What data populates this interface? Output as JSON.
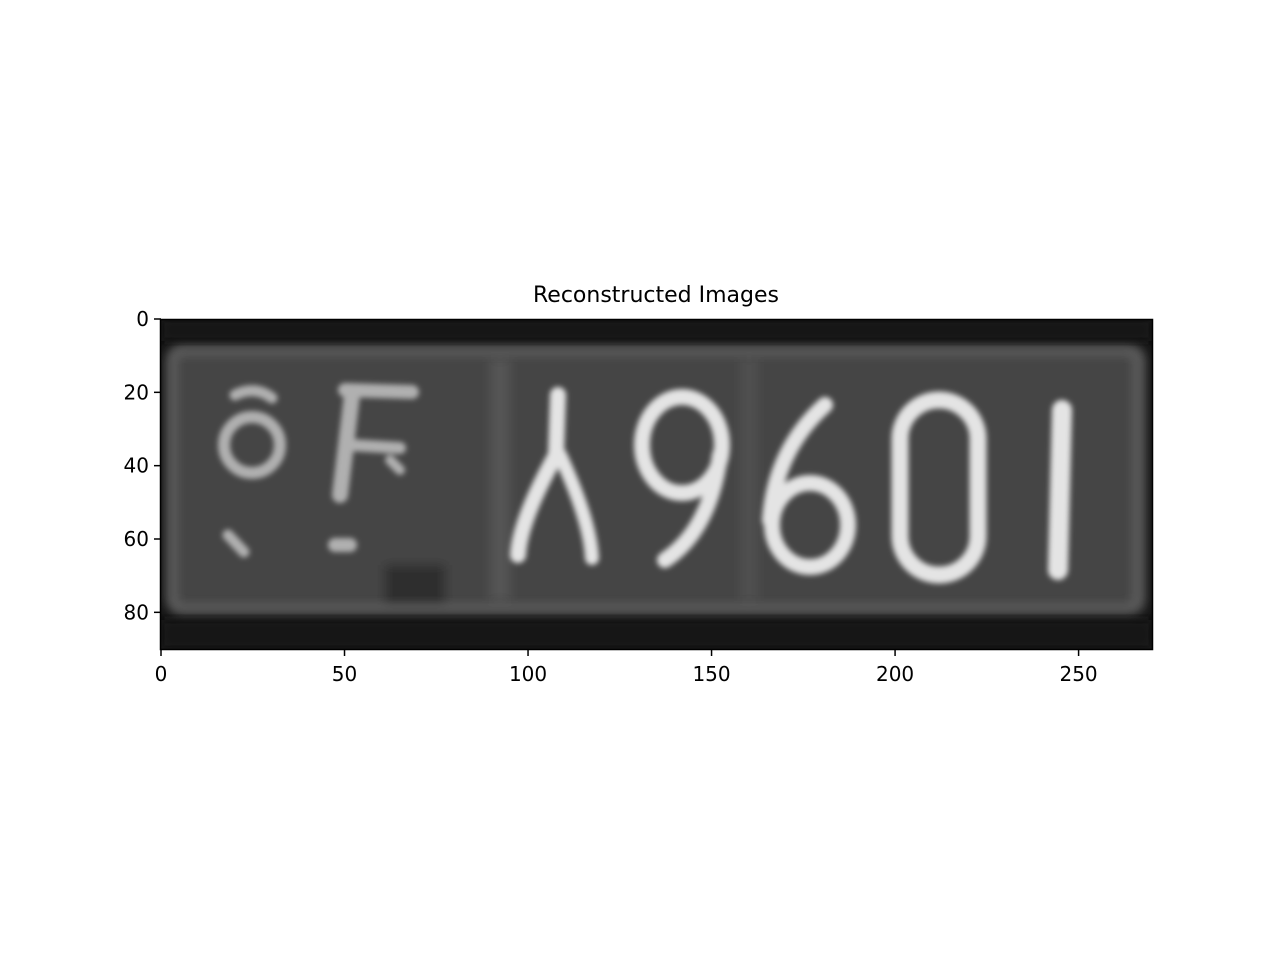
{
  "figure": {
    "title": "Reconstructed Images",
    "x_ticks": [
      "0",
      "50",
      "100",
      "150",
      "200",
      "250"
    ],
    "y_ticks": [
      "0",
      "20",
      "40",
      "60",
      "80"
    ]
  },
  "image": {
    "description_colormap": "gray",
    "glyph_text": "A9601",
    "side_glyphs": [
      "8",
      "F"
    ]
  },
  "chart_data": {
    "type": "heatmap",
    "title": "Reconstructed Images",
    "xlim": [
      0,
      270
    ],
    "ylim": [
      90,
      0
    ],
    "x_ticks": [
      0,
      50,
      100,
      150,
      200,
      250
    ],
    "y_ticks": [
      0,
      20,
      40,
      60,
      80
    ]
  }
}
